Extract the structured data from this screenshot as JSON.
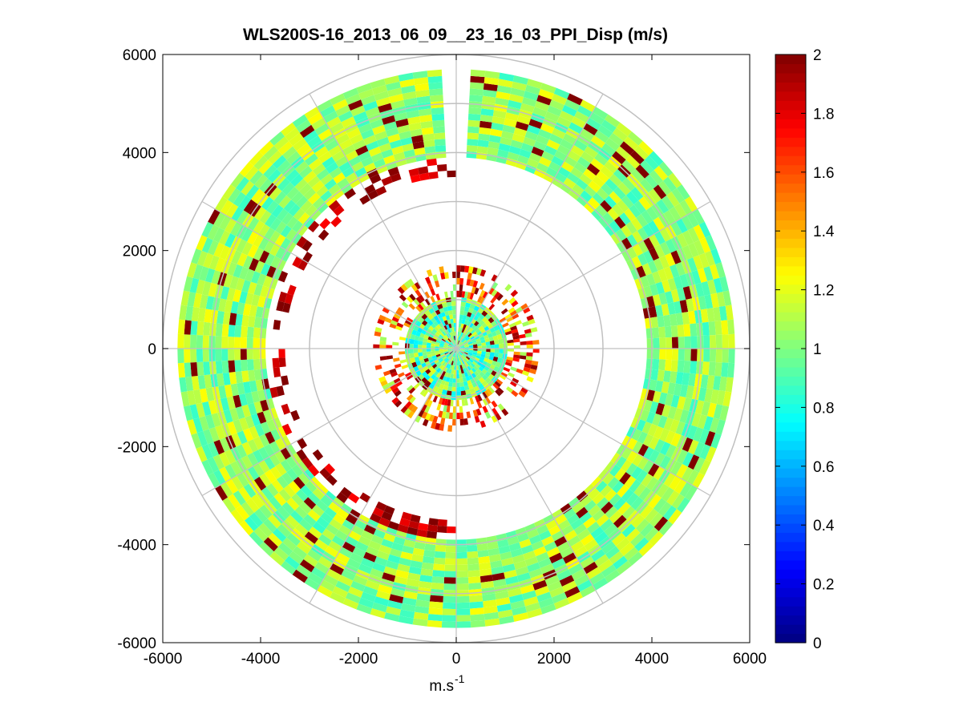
{
  "chart_data": {
    "type": "heatmap",
    "subtype": "polar-ppi",
    "title": "WLS200S-16_2013_06_09__23_16_03_PPI_Disp (m/s)",
    "xlabel_base": "m.s",
    "xlabel_exp": "-1",
    "ylabel": "",
    "xlim": [
      -6000,
      6000
    ],
    "ylim": [
      -6000,
      6000
    ],
    "xticks": [
      -6000,
      -4000,
      -2000,
      0,
      2000,
      4000,
      6000
    ],
    "yticks": [
      -6000,
      -4000,
      -2000,
      0,
      2000,
      4000,
      6000
    ],
    "xtick_labels": [
      "-6000",
      "-4000",
      "-2000",
      "0",
      "2000",
      "4000",
      "6000"
    ],
    "ytick_labels": [
      "-6000",
      "-4000",
      "-2000",
      "0",
      "2000",
      "4000",
      "6000"
    ],
    "polar_grid": {
      "range_rings": [
        1000,
        2000,
        3000,
        4000,
        5000,
        6000
      ],
      "spoke_angles_deg": [
        0,
        30,
        60,
        90,
        120,
        150,
        180,
        210,
        240,
        270,
        300,
        330
      ]
    },
    "colorbar": {
      "cmap": "jet",
      "clim": [
        0,
        2
      ],
      "ticks": [
        0,
        0.2,
        0.4,
        0.6,
        0.8,
        1,
        1.2,
        1.4,
        1.6,
        1.8,
        2
      ],
      "tick_labels": [
        "0",
        "0.2",
        "0.4",
        "0.6",
        "0.8",
        "1",
        "1.2",
        "1.4",
        "1.6",
        "1.8",
        "2"
      ]
    },
    "data_regions": [
      {
        "name": "inner-disk",
        "r_min": 0,
        "r_max": 1050,
        "az_start_deg": 0,
        "az_end_deg": 360,
        "mean_value": 0.95,
        "spread": 0.25,
        "gap_az_deg": [
          0,
          5
        ]
      },
      {
        "name": "inner-ring-edge",
        "r_min": 1050,
        "r_max": 1700,
        "az_start_deg": 0,
        "az_end_deg": 360,
        "mean_value": 1.5,
        "spread": 0.5,
        "fill_fraction": 0.45
      },
      {
        "name": "outer-ring",
        "r_min": 3900,
        "r_max": 5700,
        "az_start_deg": 0,
        "az_end_deg": 360,
        "mean_value": 1.05,
        "spread": 0.2,
        "gap_az_deg": [
          357,
          3
        ]
      },
      {
        "name": "outer-ring-inner-edge",
        "r_min": 3500,
        "r_max": 3900,
        "az_start_deg": 180,
        "az_end_deg": 360,
        "mean_value": 1.9,
        "spread": 0.15,
        "fill_fraction": 0.35
      }
    ]
  }
}
